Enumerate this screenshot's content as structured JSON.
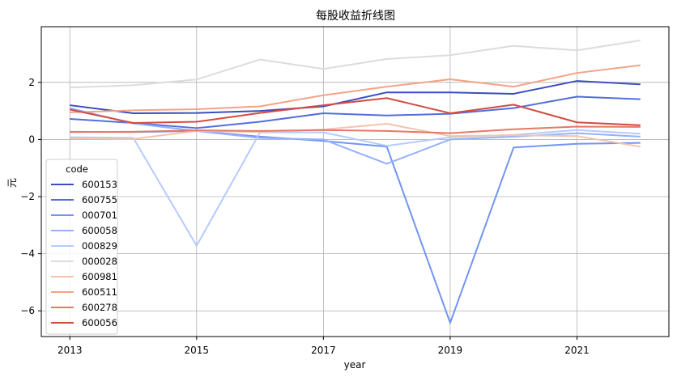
{
  "chart_data": {
    "type": "line",
    "title": "每股收益折线图",
    "xlabel": "year",
    "ylabel": "元",
    "xlim": [
      2012.55,
      2022.45
    ],
    "ylim": [
      -6.9,
      3.95
    ],
    "xticks": [
      2013,
      2015,
      2017,
      2019,
      2021
    ],
    "yticks": [
      2,
      0,
      -2,
      -4,
      -6
    ],
    "ytick_labels": [
      "2",
      "0",
      "−2",
      "−4",
      "−6"
    ],
    "grid": true,
    "legend": {
      "title": "code",
      "placement": "lower-left"
    },
    "x": [
      2013,
      2014,
      2015,
      2016,
      2017,
      2018,
      2019,
      2020,
      2021,
      2022
    ],
    "series": [
      {
        "name": "600153",
        "color": "#3b4cc0",
        "values": [
          1.2,
          0.92,
          0.93,
          1.0,
          1.16,
          1.65,
          1.65,
          1.6,
          2.05,
          1.93
        ]
      },
      {
        "name": "600755",
        "color": "#536edd",
        "values": [
          0.72,
          0.58,
          0.4,
          0.62,
          0.92,
          0.84,
          0.9,
          1.1,
          1.5,
          1.41
        ]
      },
      {
        "name": "000701",
        "color": "#7295f0",
        "values": [
          0.27,
          0.26,
          0.3,
          0.1,
          -0.05,
          -0.25,
          -6.42,
          -0.28,
          -0.15,
          -0.12
        ]
      },
      {
        "name": "600058",
        "color": "#94b1fe",
        "values": [
          1.1,
          0.56,
          0.3,
          0.05,
          0.0,
          -0.85,
          0.0,
          0.1,
          0.22,
          0.1
        ]
      },
      {
        "name": "000829",
        "color": "#b5cbfd",
        "values": [
          0.08,
          0.06,
          -3.72,
          0.25,
          0.25,
          -0.22,
          0.08,
          0.16,
          0.33,
          0.2
        ]
      },
      {
        "name": "000028",
        "color": "#dddcdc",
        "values": [
          1.82,
          1.9,
          2.1,
          2.8,
          2.47,
          2.82,
          2.95,
          3.28,
          3.12,
          3.47
        ]
      },
      {
        "name": "600981",
        "color": "#f5c3ab",
        "values": [
          0.04,
          0.02,
          0.3,
          0.26,
          0.35,
          0.55,
          0.12,
          0.15,
          0.12,
          -0.25
        ]
      },
      {
        "name": "600511",
        "color": "#f4a387",
        "values": [
          0.95,
          1.02,
          1.06,
          1.16,
          1.55,
          1.85,
          2.11,
          1.85,
          2.33,
          2.6
        ]
      },
      {
        "name": "600278",
        "color": "#e57967",
        "values": [
          0.26,
          0.27,
          0.32,
          0.3,
          0.33,
          0.3,
          0.22,
          0.36,
          0.45,
          0.44
        ]
      },
      {
        "name": "600056",
        "color": "#d24b40",
        "values": [
          1.05,
          0.58,
          0.62,
          0.93,
          1.2,
          1.45,
          0.92,
          1.22,
          0.6,
          0.5
        ]
      }
    ]
  }
}
